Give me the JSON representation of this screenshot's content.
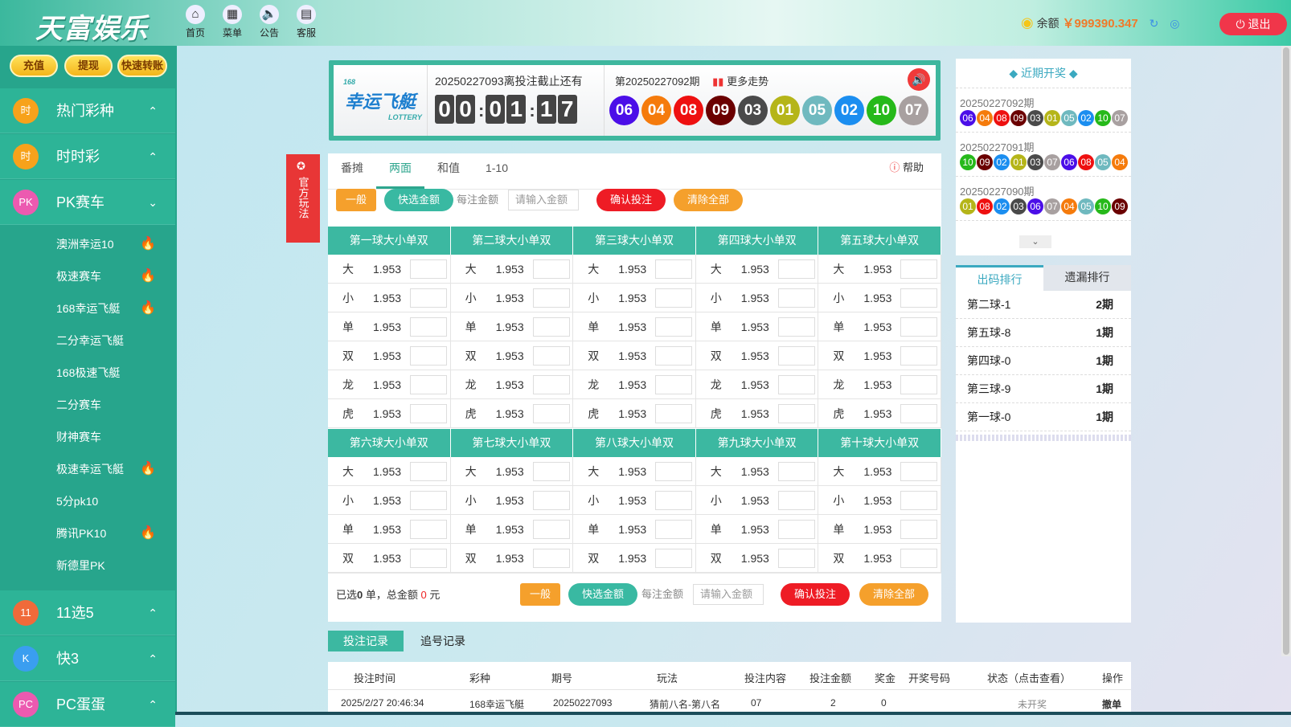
{
  "header": {
    "logo": "天富娱乐",
    "nav": [
      {
        "label": "首页",
        "icon": "home-icon",
        "glyph": "⌂"
      },
      {
        "label": "菜单",
        "icon": "grid-menu-icon",
        "glyph": "▦"
      },
      {
        "label": "公告",
        "icon": "speaker-icon",
        "glyph": "🔈"
      },
      {
        "label": "客服",
        "icon": "chat-icon",
        "glyph": "▤"
      }
    ],
    "balance_label": "余额",
    "balance": "￥999390.347",
    "logout": "退出"
  },
  "sidebar": {
    "buttons": [
      "充值",
      "提现",
      "快速转账"
    ],
    "categories_top": [
      {
        "label": "热门彩种",
        "icon": "时",
        "chev": "⌃"
      },
      {
        "label": "时时彩",
        "icon": "时",
        "chev": "⌃"
      },
      {
        "label": "PK赛车",
        "icon": "PK",
        "chev": "⌄"
      }
    ],
    "sub_items": [
      {
        "label": "澳洲幸运10",
        "hot": true
      },
      {
        "label": "极速赛车",
        "hot": true
      },
      {
        "label": "168幸运飞艇",
        "hot": true
      },
      {
        "label": "二分幸运飞艇",
        "hot": false
      },
      {
        "label": "168极速飞艇",
        "hot": false
      },
      {
        "label": "二分赛车",
        "hot": false
      },
      {
        "label": "财神赛车",
        "hot": false
      },
      {
        "label": "极速幸运飞艇",
        "hot": true
      },
      {
        "label": "5分pk10",
        "hot": false
      },
      {
        "label": "腾讯PK10",
        "hot": true
      },
      {
        "label": "新德里PK",
        "hot": false
      }
    ],
    "categories_bottom": [
      {
        "label": "11选5",
        "icon": "11",
        "chev": "⌃"
      },
      {
        "label": "快3",
        "icon": "K",
        "chev": "⌃"
      },
      {
        "label": "PC蛋蛋",
        "icon": "PC",
        "chev": "⌃"
      }
    ]
  },
  "game": {
    "logo_small": "168",
    "logo": "幸运飞艇",
    "logo_sub": "LOTTERY",
    "countdown_text": "20250227093离投注截止还有",
    "countdown": [
      "0",
      "0",
      "0",
      "1",
      "1",
      "7"
    ],
    "last_issue": "第20250227092期",
    "trend": "更多走势",
    "last_balls": [
      "06",
      "04",
      "08",
      "09",
      "03",
      "01",
      "05",
      "02",
      "10",
      "07"
    ]
  },
  "ball_colors": {
    "01": "#b5b519",
    "02": "#1b8ef0",
    "03": "#4a4a4a",
    "04": "#f57b0c",
    "05": "#6fb9bf",
    "06": "#4b0ee8",
    "07": "#a8a0a0",
    "08": "#ee1010",
    "09": "#6b0000",
    "10": "#26b91a"
  },
  "official": "官方玩法",
  "tabs": [
    "番摊",
    "两面",
    "和值",
    "1-10"
  ],
  "active_tab": "两面",
  "help": "帮助",
  "actions": {
    "normal": "一般",
    "quick": "快选金额",
    "per_label": "每注金额",
    "placeholder": "请输入金额",
    "confirm": "确认投注",
    "clear": "清除全部"
  },
  "groups1": [
    "第一球大小单双",
    "第二球大小单双",
    "第三球大小单双",
    "第四球大小单双",
    "第五球大小单双"
  ],
  "groups2": [
    "第六球大小单双",
    "第七球大小单双",
    "第八球大小单双",
    "第九球大小单双",
    "第十球大小单双"
  ],
  "rows1": [
    [
      "大",
      "1.953"
    ],
    [
      "小",
      "1.953"
    ],
    [
      "单",
      "1.953"
    ],
    [
      "双",
      "1.953"
    ],
    [
      "龙",
      "1.953"
    ],
    [
      "虎",
      "1.953"
    ]
  ],
  "rows2": [
    [
      "大",
      "1.953"
    ],
    [
      "小",
      "1.953"
    ],
    [
      "单",
      "1.953"
    ],
    [
      "双",
      "1.953"
    ]
  ],
  "summary": {
    "pre": "已选",
    "count": "0",
    "mid": "单，总金额",
    "amount": "0",
    "unit": "元"
  },
  "recent": {
    "title": "近期开奖",
    "draws": [
      {
        "issue": "20250227092期",
        "balls": [
          "06",
          "04",
          "08",
          "09",
          "03",
          "01",
          "05",
          "02",
          "10",
          "07"
        ]
      },
      {
        "issue": "20250227091期",
        "balls": [
          "10",
          "09",
          "02",
          "01",
          "03",
          "07",
          "06",
          "08",
          "05",
          "04"
        ]
      },
      {
        "issue": "20250227090期",
        "balls": [
          "01",
          "08",
          "02",
          "03",
          "06",
          "07",
          "04",
          "05",
          "10",
          "09"
        ]
      }
    ]
  },
  "rank": {
    "tabs": [
      "出码排行",
      "遗漏排行"
    ],
    "rows": [
      [
        "第二球-1",
        "2期"
      ],
      [
        "第五球-8",
        "1期"
      ],
      [
        "第四球-0",
        "1期"
      ],
      [
        "第三球-9",
        "1期"
      ],
      [
        "第一球-0",
        "1期"
      ]
    ]
  },
  "records": {
    "tabs": [
      "投注记录",
      "追号记录"
    ],
    "headers": [
      "投注时间",
      "彩种",
      "期号",
      "玩法",
      "投注内容",
      "投注金额",
      "奖金",
      "开奖号码",
      "状态（点击查看）",
      "操作"
    ],
    "rows": [
      [
        "2025/2/27 20:46:34",
        "168幸运飞艇",
        "20250227093",
        "猜前八名-第八名",
        "07",
        "2",
        "0",
        "",
        "未开奖",
        "撤单"
      ]
    ]
  }
}
